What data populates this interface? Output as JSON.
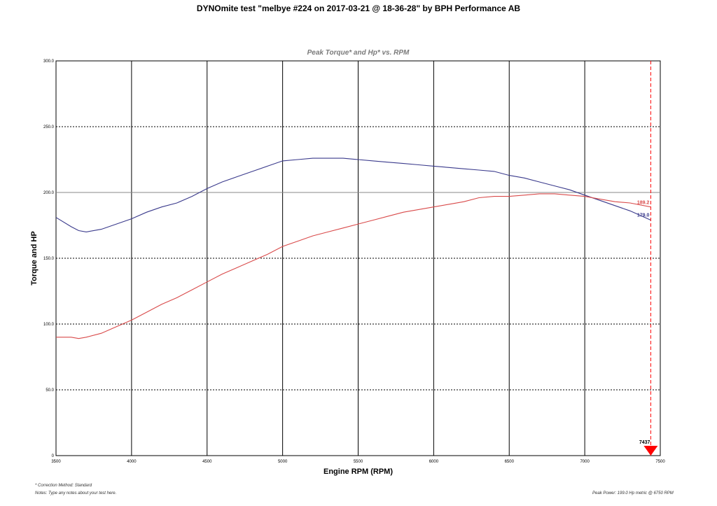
{
  "title": "DYNOmite test \"melbye #224 on 2017-03-21 @ 18-36-28\" by BPH Performance AB",
  "footer": {
    "correction": "* Correction Method: Standard",
    "notes": "Notes: Type any notes about your test here.",
    "peak": "Peak Power: 199.0 Hp metric @ 6750 RPM"
  },
  "colors": {
    "torque": "#3a3a8c",
    "hp": "#d94a4a",
    "marker": "#ff0000"
  },
  "chart_data": {
    "type": "line",
    "title": "Peak Torque* and Hp* vs. RPM",
    "xlabel": "Engine RPM (RPM)",
    "ylabel": "Torque and HP",
    "xlim": [
      3500,
      7500
    ],
    "ylim": [
      0,
      300
    ],
    "xticks": [
      "3500",
      "4000",
      "4500",
      "5000",
      "5500",
      "6000",
      "6500",
      "7000",
      "7500"
    ],
    "yticks": [
      "0",
      "50.0",
      "100.0",
      "150.0",
      "200.0",
      "250.0",
      "300.0"
    ],
    "grid": true,
    "series": [
      {
        "key": "torque",
        "x": [
          3500,
          3600,
          3650,
          3700,
          3800,
          3900,
          4000,
          4100,
          4200,
          4300,
          4400,
          4500,
          4600,
          4700,
          4800,
          4900,
          5000,
          5100,
          5200,
          5300,
          5400,
          5500,
          5600,
          5700,
          5800,
          5900,
          6000,
          6100,
          6200,
          6300,
          6400,
          6500,
          6600,
          6700,
          6800,
          6900,
          7000,
          7100,
          7200,
          7300,
          7437
        ],
        "y": [
          181,
          174,
          171,
          170,
          172,
          176,
          180,
          185,
          189,
          192,
          197,
          203,
          208,
          212,
          216,
          220,
          224,
          225,
          226,
          226,
          226,
          225,
          224,
          223,
          222,
          221,
          220,
          219,
          218,
          217,
          216,
          213,
          211,
          208,
          205,
          202,
          198,
          194,
          190,
          186,
          179
        ],
        "end_label": "179.0"
      },
      {
        "key": "hp",
        "x": [
          3500,
          3550,
          3600,
          3650,
          3700,
          3800,
          3900,
          4000,
          4100,
          4200,
          4300,
          4400,
          4500,
          4600,
          4700,
          4800,
          4900,
          5000,
          5100,
          5200,
          5300,
          5400,
          5500,
          5600,
          5700,
          5800,
          5900,
          6000,
          6100,
          6200,
          6300,
          6400,
          6500,
          6600,
          6700,
          6800,
          6900,
          7000,
          7100,
          7200,
          7300,
          7437
        ],
        "y": [
          90,
          90,
          90,
          89,
          90,
          93,
          98,
          103,
          109,
          115,
          120,
          126,
          132,
          138,
          143,
          148,
          153,
          159,
          163,
          167,
          170,
          173,
          176,
          179,
          182,
          185,
          187,
          189,
          191,
          193,
          196,
          197,
          197,
          198,
          199,
          199,
          198,
          197,
          195,
          193,
          192,
          189
        ],
        "end_label": "189.2"
      }
    ],
    "marker": {
      "x": 7437,
      "label": "7437"
    }
  }
}
